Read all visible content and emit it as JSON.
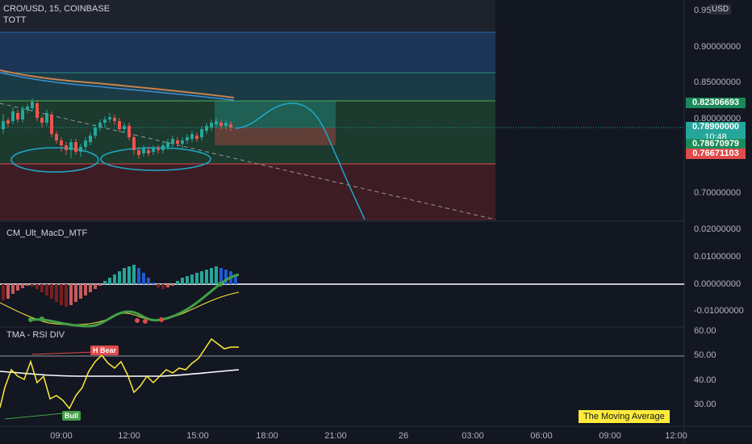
{
  "header": {
    "symbol": "CRO/USD, 15, COINBASE",
    "indicator": "TOTT",
    "currency": "USD"
  },
  "price_axis": {
    "top_partial": "0.95",
    "labels": [
      "0.90000000",
      "0.85000000",
      "0.80000000",
      "0.70000000"
    ]
  },
  "price_tags": {
    "upper": "0.82306693",
    "current": "0.78900000",
    "countdown": "10:48",
    "lower_green": "0.78670979",
    "lower_red": "0.76671103"
  },
  "macd_pane": {
    "title": "CM_Ult_MacD_MTF",
    "axis_labels": [
      "0.02000000",
      "0.01000000",
      "0.00000000",
      "-0.01000000"
    ]
  },
  "rsi_pane": {
    "title": "TMA - RSI DIV",
    "axis_labels": [
      "60.00",
      "50.00",
      "40.00",
      "30.00"
    ],
    "badge_bear": "H Bear",
    "badge_bull": "Bull",
    "ma_label": "The Moving Average"
  },
  "time_axis": [
    "09:00",
    "12:00",
    "15:00",
    "18:00",
    "21:00",
    "26",
    "03:00",
    "06:00",
    "09:00",
    "12:00"
  ],
  "colors": {
    "background": "#131722",
    "bull_candle": "#26a69a",
    "bear_candle": "#ef5350",
    "tag_green": "#1b8a5a",
    "tag_teal": "#26a69a",
    "tag_red": "#e04b4b",
    "macd_signal": "#ffeb3b",
    "macd_line": "#43a047",
    "rsi_line": "#ffeb3b"
  }
}
